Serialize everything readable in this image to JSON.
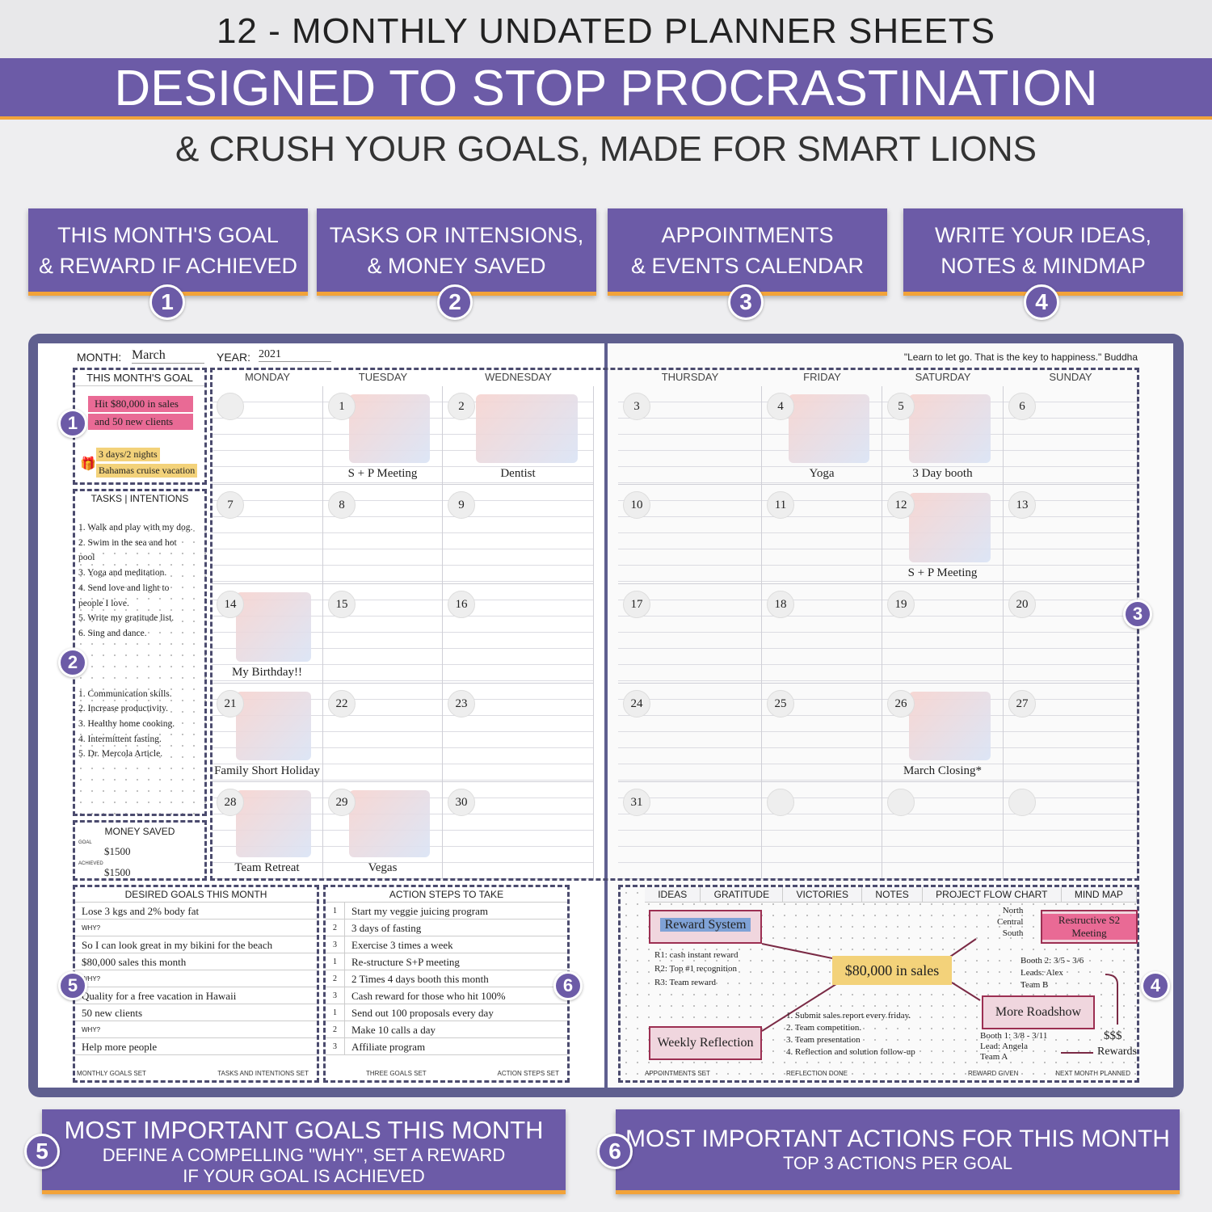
{
  "header": {
    "top_title": "12 - MONTHLY UNDATED PLANNER SHEETS",
    "main_title": "DESIGNED TO STOP PROCRASTINATION",
    "subtitle": "& CRUSH YOUR GOALS, MADE FOR SMART LIONS"
  },
  "features": [
    {
      "line1": "THIS MONTH'S GOAL",
      "line2": "& REWARD IF ACHIEVED",
      "num": "1"
    },
    {
      "line1": "TASKS OR INTENSIONS,",
      "line2": "& MONEY SAVED",
      "num": "2"
    },
    {
      "line1": "APPOINTMENTS",
      "line2": "& EVENTS CALENDAR",
      "num": "3"
    },
    {
      "line1": "WRITE YOUR IDEAS,",
      "line2": "NOTES & MINDMAP",
      "num": "4"
    }
  ],
  "planner": {
    "month_label": "MONTH:",
    "month": "March",
    "year_label": "YEAR:",
    "year": "2021",
    "quote": "\"Learn to let go. That is the key to happiness.\" Buddha",
    "goal_title": "THIS MONTH'S GOAL",
    "goal_lines": [
      "Hit $80,000 in sales",
      "and 50 new clients"
    ],
    "reward_lines": [
      "3 days/2 nights",
      "Bahamas cruise vacation"
    ],
    "tasks_title": "TASKS | INTENTIONS",
    "tasks": [
      "1. Walk and play with my dog.",
      "2. Swim in the sea and hot",
      "pool",
      "3. Yoga and meditation.",
      "4. Send love and light to",
      "people I love.",
      "5. Write my gratitude list.",
      "6. Sing and dance."
    ],
    "tasks2": [
      "1. Communication skills.",
      "2. Increase productivity.",
      "3. Healthy home cooking.",
      "4. Intermittent fasting.",
      "5. Dr. Mercola Article."
    ],
    "money_title": "MONEY SAVED",
    "goal_small": "GOAL",
    "goal_amount": "$1500",
    "achieved_small": "ACHIEVED",
    "achieved_amount": "$1500",
    "left_days": [
      "MONDAY",
      "TUESDAY",
      "WEDNESDAY"
    ],
    "right_days": [
      "THURSDAY",
      "FRIDAY",
      "SATURDAY",
      "SUNDAY"
    ],
    "left_weeks": [
      [
        "",
        "1",
        "2"
      ],
      [
        "7",
        "8",
        "9"
      ],
      [
        "14",
        "15",
        "16"
      ],
      [
        "21",
        "22",
        "23"
      ],
      [
        "28",
        "29",
        "30"
      ]
    ],
    "right_weeks": [
      [
        "3",
        "4",
        "5",
        "6"
      ],
      [
        "10",
        "11",
        "12",
        "13"
      ],
      [
        "17",
        "18",
        "19",
        "20"
      ],
      [
        "24",
        "25",
        "26",
        "27"
      ],
      [
        "31",
        "",
        "",
        ""
      ]
    ],
    "events": {
      "1": "S + P Meeting",
      "2": "Dentist",
      "4": "Yoga",
      "5": "3 Day booth",
      "12": "S + P Meeting",
      "14": "My Birthday!!",
      "21": "Family Short Holiday",
      "26": "March Closing*",
      "28": "Team Retreat",
      "29": "Vegas"
    },
    "side_nums": {
      "n1": "1",
      "n2": "2",
      "n3": "3",
      "n4": "4",
      "n5": "5",
      "n6": "6"
    },
    "desired": {
      "title": "DESIRED GOALS THIS MONTH",
      "lines": [
        "Lose 3 kgs and 2% body fat",
        "WHY?",
        "So I can look great in my bikini for the beach",
        "$80,000 sales this month",
        "WHY?",
        "Quality for a free vacation in Hawaii",
        "50 new clients",
        "WHY?",
        "Help more people"
      ],
      "foot1": "MONTHLY GOALS SET",
      "foot2": "TASKS AND INTENTIONS SET"
    },
    "actions": {
      "title": "ACTION STEPS TO TAKE",
      "nums": [
        "1",
        "2",
        "3",
        "1",
        "2",
        "3",
        "1",
        "2",
        "3"
      ],
      "lines": [
        "Start my veggie juicing program",
        "3 days of fasting",
        "Exercise 3 times a week",
        "Re-structure S+P meeting",
        "2 Times 4 days booth this month",
        "Cash reward for those who hit 100%",
        "Send out 100 proposals every day",
        "Make 10 calls a day",
        "Affiliate program"
      ],
      "foot1": "THREE GOALS SET",
      "foot2": "ACTION STEPS SET"
    },
    "ideas": {
      "tabs": [
        "IDEAS",
        "GRATITUDE",
        "VICTORIES",
        "NOTES",
        "PROJECT FLOW CHART",
        "MIND MAP"
      ],
      "center": "$80,000 in sales",
      "reward_system": "Reward System",
      "rewards": [
        "R1: cash instant reward",
        "R2: Top #1 recognition",
        "R3: Team reward"
      ],
      "restructive": [
        "Restructive S2",
        "Meeting"
      ],
      "regions": [
        "North",
        "Central",
        "South"
      ],
      "booth2": [
        "Booth 2: 3/5 - 3/6",
        "Leads: Alex",
        "Team B"
      ],
      "roadshow": "More Roadshow",
      "booth1": [
        "Booth 1: 3/8 - 3/11",
        "Lead: Angela",
        "Team A"
      ],
      "money": "$$$",
      "rewards_label": "Rewards",
      "weekly": "Weekly Reflection",
      "steps": [
        "1. Submit sales report every friday.",
        "2. Team competition.",
        "3. Team presentation",
        "4. Reflection and solution follow-up"
      ],
      "foots": [
        "APPOINTMENTS SET",
        "REFLECTION DONE",
        "REWARD GIVEN",
        "NEXT MONTH PLANNED"
      ]
    }
  },
  "banners": {
    "b5": {
      "num": "5",
      "title": "MOST IMPORTANT GOALS THIS MONTH",
      "l1": "DEFINE A COMPELLING \"WHY\", SET A REWARD",
      "l2": "IF YOUR GOAL IS ACHIEVED"
    },
    "b6": {
      "num": "6",
      "title": "MOST IMPORTANT ACTIONS FOR THIS MONTH",
      "l1": "TOP 3 ACTIONS PER GOAL"
    }
  },
  "colors": {
    "purple": "#6c5ba7",
    "orange": "#f2a33a",
    "frame": "#5f5f8f",
    "pink": "#e96a95",
    "yellow": "#f3d27a"
  }
}
